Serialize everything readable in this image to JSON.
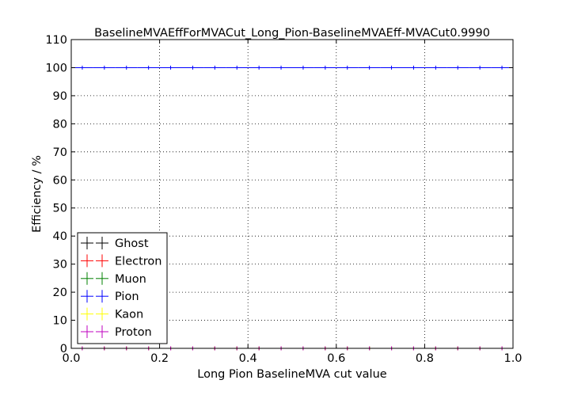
{
  "chart_data": {
    "type": "scatter",
    "title": "BaselineMVAEffForMVACut_Long_Pion-BaselineMVAEff-MVACut0.9990",
    "xlabel": "Long Pion BaselineMVA cut value",
    "ylabel": "Efficiency / %",
    "xlim": [
      0.0,
      1.0
    ],
    "ylim": [
      0,
      110
    ],
    "xticks": [
      "0.0",
      "0.2",
      "0.4",
      "0.6",
      "0.8",
      "1.0"
    ],
    "yticks": [
      "0",
      "10",
      "20",
      "30",
      "40",
      "50",
      "60",
      "70",
      "80",
      "90",
      "100",
      "110"
    ],
    "grid": true,
    "legend_position": "lower-left",
    "x": [
      0.025,
      0.075,
      0.125,
      0.175,
      0.225,
      0.275,
      0.325,
      0.375,
      0.425,
      0.475,
      0.525,
      0.575,
      0.625,
      0.675,
      0.725,
      0.775,
      0.825,
      0.875,
      0.925,
      0.975
    ],
    "series": [
      {
        "name": "Ghost",
        "color": "#000000",
        "values": [
          0,
          0,
          0,
          0,
          0,
          0,
          0,
          0,
          0,
          0,
          0,
          0,
          0,
          0,
          0,
          0,
          0,
          0,
          0,
          0
        ]
      },
      {
        "name": "Electron",
        "color": "#ff0000",
        "values": [
          0,
          0,
          0,
          0,
          0,
          0,
          0,
          0,
          0,
          0,
          0,
          0,
          0,
          0,
          0,
          0,
          0,
          0,
          0,
          0
        ]
      },
      {
        "name": "Muon",
        "color": "#008000",
        "values": [
          0,
          0,
          0,
          0,
          0,
          0,
          0,
          0,
          0,
          0,
          0,
          0,
          0,
          0,
          0,
          0,
          0,
          0,
          0,
          0
        ]
      },
      {
        "name": "Pion",
        "color": "#0000ff",
        "values": [
          100,
          100,
          100,
          100,
          100,
          100,
          100,
          100,
          100,
          100,
          100,
          100,
          100,
          100,
          100,
          100,
          100,
          100,
          100,
          100
        ]
      },
      {
        "name": "Kaon",
        "color": "#ffff00",
        "values": [
          0,
          0,
          0,
          0,
          0,
          0,
          0,
          0,
          0,
          0,
          0,
          0,
          0,
          0,
          0,
          0,
          0,
          0,
          0,
          0
        ]
      },
      {
        "name": "Proton",
        "color": "#bf00bf",
        "values": [
          0,
          0,
          0,
          0,
          0,
          0,
          0,
          0,
          0,
          0,
          0,
          0,
          0,
          0,
          0,
          0,
          0,
          0,
          0,
          0
        ]
      }
    ]
  }
}
